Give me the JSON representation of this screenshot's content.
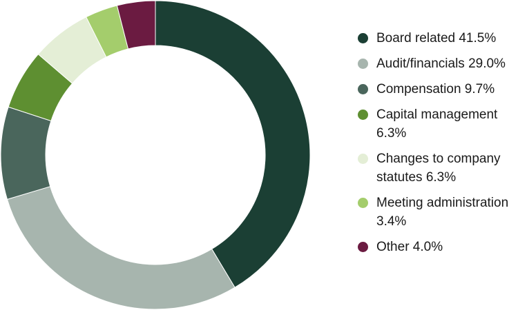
{
  "chart_data": {
    "type": "pie",
    "donut": true,
    "start": "top",
    "direction": "clockwise",
    "legend_position": "right",
    "slices": [
      {
        "label": "Board related",
        "value": 41.5,
        "label_text": "Board related 41.5%",
        "color": "#1b3f34"
      },
      {
        "label": "Audit/financials",
        "value": 29.0,
        "label_text": "Audit/financials 29.0%",
        "color": "#a7b5ae"
      },
      {
        "label": "Compensation",
        "value": 9.7,
        "label_text": "Compensation 9.7%",
        "color": "#4a665c"
      },
      {
        "label": "Capital management",
        "value": 6.3,
        "label_text": "Capital management 6.3%",
        "color": "#5e8f31"
      },
      {
        "label": "Changes to company statutes",
        "value": 6.3,
        "label_text": "Changes to company statutes 6.3%",
        "color": "#e4eed6"
      },
      {
        "label": "Meeting administration",
        "value": 3.4,
        "label_text": "Meeting administration 3.4%",
        "color": "#a4cd6c"
      },
      {
        "label": "Other",
        "value": 4.0,
        "label_text": "Other 4.0%",
        "color": "#6b1b41"
      }
    ]
  }
}
